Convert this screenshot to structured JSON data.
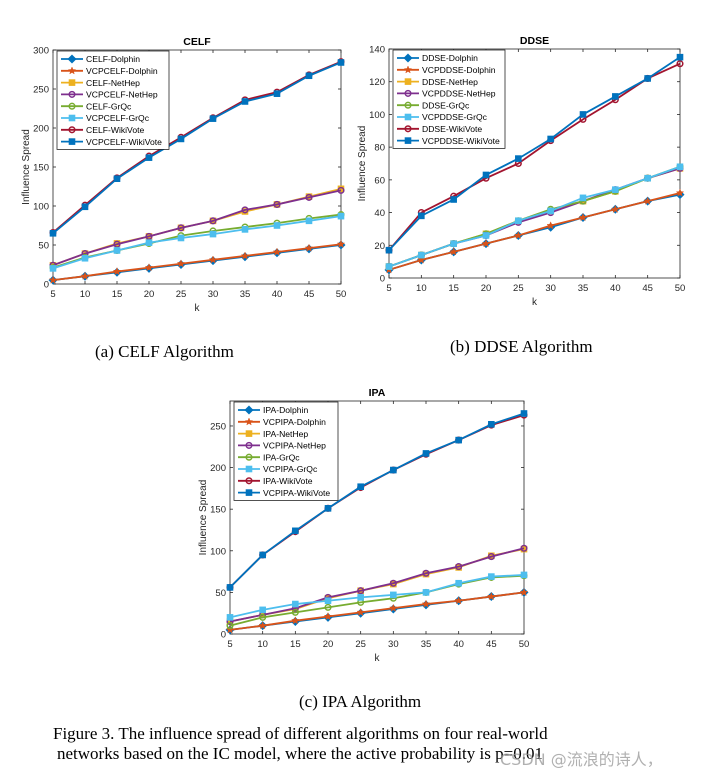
{
  "chart_data": [
    {
      "type": "line",
      "title": "CELF",
      "xlabel": "k",
      "ylabel": "Influence Spread",
      "x": [
        5,
        10,
        15,
        20,
        25,
        30,
        35,
        40,
        45,
        50
      ],
      "xlim": [
        5,
        50
      ],
      "ylim": [
        0,
        300
      ],
      "xticks": [
        5,
        10,
        15,
        20,
        25,
        30,
        35,
        40,
        45,
        50
      ],
      "yticks": [
        0,
        50,
        100,
        150,
        200,
        250,
        300
      ],
      "grid": false,
      "legend": "top-left",
      "series": [
        {
          "name": "CELF-Dolphin",
          "color": "#0072BD",
          "marker": "diamond",
          "values": [
            5,
            10,
            15,
            20,
            25,
            30,
            35,
            40,
            45,
            50
          ]
        },
        {
          "name": "VCPCELF-Dolphin",
          "color": "#D95319",
          "marker": "star",
          "values": [
            5,
            10,
            16,
            21,
            26,
            31,
            36,
            41,
            46,
            51
          ]
        },
        {
          "name": "CELF-NetHep",
          "color": "#EDB120",
          "marker": "square",
          "values": [
            24,
            39,
            52,
            61,
            72,
            81,
            93,
            102,
            112,
            122
          ]
        },
        {
          "name": "VCPCELF-NetHep",
          "color": "#7E2F8E",
          "marker": "circle",
          "values": [
            24,
            39,
            51,
            61,
            72,
            81,
            95,
            102,
            111,
            120
          ]
        },
        {
          "name": "CELF-GrQc",
          "color": "#77AC30",
          "marker": "circle",
          "values": [
            21,
            34,
            43,
            52,
            62,
            68,
            73,
            78,
            84,
            89
          ]
        },
        {
          "name": "VCPCELF-GrQc",
          "color": "#4DBEEE",
          "marker": "square",
          "values": [
            20,
            33,
            43,
            53,
            59,
            64,
            70,
            75,
            81,
            87
          ]
        },
        {
          "name": "CELF-WikiVote",
          "color": "#A2142F",
          "marker": "circle",
          "values": [
            66,
            101,
            136,
            164,
            188,
            213,
            236,
            246,
            268,
            285
          ]
        },
        {
          "name": "VCPCELF-WikiVote",
          "color": "#0072BD",
          "marker": "square",
          "values": [
            65,
            99,
            135,
            162,
            186,
            212,
            234,
            244,
            267,
            284
          ]
        }
      ],
      "caption": "(a)  CELF Algorithm"
    },
    {
      "type": "line",
      "title": "DDSE",
      "xlabel": "k",
      "ylabel": "Influence Spread",
      "x": [
        5,
        10,
        15,
        20,
        25,
        30,
        35,
        40,
        45,
        50
      ],
      "xlim": [
        5,
        50
      ],
      "ylim": [
        0,
        140
      ],
      "xticks": [
        5,
        10,
        15,
        20,
        25,
        30,
        35,
        40,
        45,
        50
      ],
      "yticks": [
        0,
        20,
        40,
        60,
        80,
        100,
        120,
        140
      ],
      "grid": false,
      "legend": "top-left",
      "series": [
        {
          "name": "DDSE-Dolphin",
          "color": "#0072BD",
          "marker": "diamond",
          "values": [
            5,
            11,
            16,
            21,
            26,
            31,
            37,
            42,
            47,
            51
          ]
        },
        {
          "name": "VCPDDSE-Dolphin",
          "color": "#D95319",
          "marker": "star",
          "values": [
            5,
            11,
            16,
            21,
            26,
            32,
            37,
            42,
            47,
            52
          ]
        },
        {
          "name": "DDSE-NetHep",
          "color": "#EDB120",
          "marker": "square",
          "values": [
            7,
            14,
            21,
            27,
            35,
            41,
            47,
            53,
            61,
            67
          ]
        },
        {
          "name": "VCPDDSE-NetHep",
          "color": "#7E2F8E",
          "marker": "circle",
          "values": [
            7,
            14,
            21,
            26,
            34,
            40,
            47,
            54,
            61,
            67
          ]
        },
        {
          "name": "DDSE-GrQc",
          "color": "#77AC30",
          "marker": "circle",
          "values": [
            7,
            14,
            21,
            27,
            35,
            42,
            47,
            53,
            61,
            68
          ]
        },
        {
          "name": "VCPDDSE-GrQc",
          "color": "#4DBEEE",
          "marker": "square",
          "values": [
            7,
            14,
            21,
            26,
            35,
            41,
            49,
            54,
            61,
            68
          ]
        },
        {
          "name": "DDSE-WikiVote",
          "color": "#A2142F",
          "marker": "circle",
          "values": [
            17,
            40,
            50,
            61,
            70,
            84,
            97,
            109,
            122,
            131
          ]
        },
        {
          "name": "VCPDDSE-WikiVote",
          "color": "#0072BD",
          "marker": "square",
          "values": [
            17,
            38,
            48,
            63,
            73,
            85,
            100,
            111,
            122,
            135
          ]
        }
      ],
      "caption": "(b) DDSE Algorithm"
    },
    {
      "type": "line",
      "title": "IPA",
      "xlabel": "k",
      "ylabel": "Influence Spread",
      "x": [
        5,
        10,
        15,
        20,
        25,
        30,
        35,
        40,
        45,
        50
      ],
      "xlim": [
        5,
        50
      ],
      "ylim": [
        0,
        280
      ],
      "xticks": [
        5,
        10,
        15,
        20,
        25,
        30,
        35,
        40,
        45,
        50
      ],
      "yticks": [
        0,
        50,
        100,
        150,
        200,
        250
      ],
      "grid": false,
      "legend": "top-left",
      "series": [
        {
          "name": "IPA-Dolphin",
          "color": "#0072BD",
          "marker": "diamond",
          "values": [
            5,
            10,
            15,
            20,
            25,
            30,
            35,
            40,
            45,
            50
          ]
        },
        {
          "name": "VCPIPA-Dolphin",
          "color": "#D95319",
          "marker": "star",
          "values": [
            5,
            10,
            16,
            21,
            26,
            31,
            36,
            40,
            45,
            50
          ]
        },
        {
          "name": "IPA-NetHep",
          "color": "#EDB120",
          "marker": "square",
          "values": [
            15,
            23,
            30,
            43,
            52,
            60,
            72,
            80,
            94,
            102
          ]
        },
        {
          "name": "VCPIPA-NetHep",
          "color": "#7E2F8E",
          "marker": "circle",
          "values": [
            15,
            23,
            31,
            44,
            52,
            61,
            73,
            81,
            93,
            103
          ]
        },
        {
          "name": "IPA-GrQc",
          "color": "#77AC30",
          "marker": "circle",
          "values": [
            10,
            20,
            26,
            32,
            38,
            43,
            50,
            60,
            68,
            70
          ]
        },
        {
          "name": "VCPIPA-GrQc",
          "color": "#4DBEEE",
          "marker": "square",
          "values": [
            20,
            29,
            36,
            40,
            44,
            47,
            50,
            61,
            69,
            71
          ]
        },
        {
          "name": "IPA-WikiVote",
          "color": "#A2142F",
          "marker": "circle",
          "values": [
            56,
            95,
            123,
            151,
            176,
            197,
            216,
            233,
            251,
            263
          ]
        },
        {
          "name": "VCPIPA-WikiVote",
          "color": "#0072BD",
          "marker": "square",
          "values": [
            56,
            95,
            124,
            151,
            177,
            197,
            217,
            233,
            252,
            265
          ]
        }
      ],
      "caption": "(c) IPA Algorithm"
    }
  ],
  "figure_caption": {
    "line1": "Figure 3. The influence spread of different algorithms on four real-world",
    "line2": "networks based on the IC model, where the active probability is p=0.01"
  },
  "watermark": "CSDN @流浪的诗人，"
}
